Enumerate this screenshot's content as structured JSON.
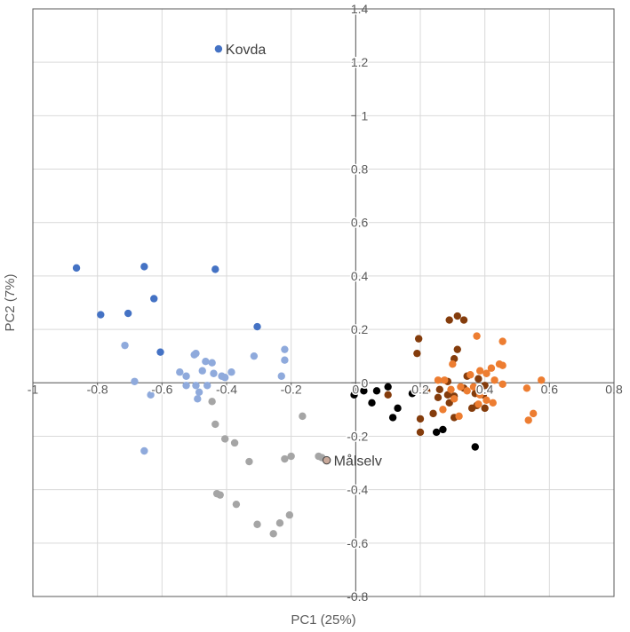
{
  "chart_data": {
    "type": "scatter",
    "title": "",
    "xlabel": "PC1 (25%)",
    "ylabel": "PC2 (7%)",
    "xlim": [
      -1,
      0.8
    ],
    "ylim": [
      -0.8,
      1.4
    ],
    "x_ticks": [
      -1,
      -0.8,
      -0.6,
      -0.4,
      -0.2,
      0,
      0.2,
      0.4,
      0.6,
      0.8
    ],
    "x_tick_labels": [
      "-1",
      "-0.8",
      "-0.6",
      "-0.4",
      "-0.2",
      "0",
      "0.2",
      "0.4",
      "0.6",
      "0.8"
    ],
    "y_ticks": [
      -0.8,
      -0.6,
      -0.4,
      -0.2,
      0,
      0.2,
      0.4,
      0.6,
      0.8,
      1,
      1.2,
      1.4
    ],
    "y_tick_labels": [
      "-0.8",
      "-0.6",
      "-0.4",
      "-0.2",
      "0",
      "0.2",
      "0.4",
      "0.6",
      "0.8",
      "1",
      "1.2",
      "1.4"
    ],
    "grid": true,
    "legend": "none",
    "annotations": [
      {
        "text": "Kovda",
        "x": -0.425,
        "y": 1.25
      },
      {
        "text": "Målselv",
        "x": -0.09,
        "y": -0.29
      }
    ],
    "series": [
      {
        "color": "#4472C4",
        "points": [
          [
            -0.425,
            1.25
          ],
          [
            -0.865,
            0.43
          ],
          [
            -0.655,
            0.435
          ],
          [
            -0.435,
            0.425
          ],
          [
            -0.625,
            0.315
          ],
          [
            -0.705,
            0.26
          ],
          [
            -0.79,
            0.255
          ],
          [
            -0.305,
            0.21
          ],
          [
            -0.605,
            0.115
          ]
        ]
      },
      {
        "color": "#8FAADC",
        "points": [
          [
            -0.715,
            0.14
          ],
          [
            -0.22,
            0.125
          ],
          [
            -0.5,
            0.105
          ],
          [
            -0.495,
            0.11
          ],
          [
            -0.315,
            0.1
          ],
          [
            -0.22,
            0.085
          ],
          [
            -0.445,
            0.075
          ],
          [
            -0.465,
            0.08
          ],
          [
            -0.385,
            0.04
          ],
          [
            -0.545,
            0.04
          ],
          [
            -0.525,
            0.025
          ],
          [
            -0.475,
            0.045
          ],
          [
            -0.44,
            0.035
          ],
          [
            -0.415,
            0.025
          ],
          [
            -0.405,
            0.02
          ],
          [
            -0.23,
            0.025
          ],
          [
            -0.685,
            0.005
          ],
          [
            -0.525,
            -0.01
          ],
          [
            -0.495,
            -0.01
          ],
          [
            -0.46,
            -0.01
          ],
          [
            -0.485,
            -0.035
          ],
          [
            -0.635,
            -0.045
          ],
          [
            -0.49,
            -0.06
          ],
          [
            -0.655,
            -0.255
          ]
        ]
      },
      {
        "color": "#A5A5A5",
        "points": [
          [
            -0.445,
            -0.07
          ],
          [
            -0.165,
            -0.125
          ],
          [
            -0.435,
            -0.155
          ],
          [
            -0.405,
            -0.21
          ],
          [
            -0.375,
            -0.225
          ],
          [
            -0.2,
            -0.275
          ],
          [
            -0.22,
            -0.285
          ],
          [
            -0.105,
            -0.28
          ],
          [
            -0.115,
            -0.275
          ],
          [
            -0.33,
            -0.295
          ],
          [
            -0.43,
            -0.415
          ],
          [
            -0.42,
            -0.42
          ],
          [
            -0.37,
            -0.455
          ],
          [
            -0.205,
            -0.495
          ],
          [
            -0.235,
            -0.525
          ],
          [
            -0.305,
            -0.53
          ],
          [
            -0.255,
            -0.565
          ]
        ]
      },
      {
        "color": "#000000",
        "points": [
          [
            0.1,
            -0.015
          ],
          [
            0.025,
            -0.03
          ],
          [
            0.065,
            -0.03
          ],
          [
            0.175,
            -0.04
          ],
          [
            -0.005,
            -0.045
          ],
          [
            0.05,
            -0.075
          ],
          [
            0.13,
            -0.095
          ],
          [
            0.115,
            -0.13
          ],
          [
            0.27,
            -0.175
          ],
          [
            0.25,
            -0.185
          ],
          [
            0.37,
            -0.24
          ]
        ]
      },
      {
        "color": "#843C0C",
        "points": [
          [
            0.315,
            0.25
          ],
          [
            0.29,
            0.235
          ],
          [
            0.335,
            0.235
          ],
          [
            0.195,
            0.165
          ],
          [
            0.315,
            0.125
          ],
          [
            0.19,
            0.11
          ],
          [
            0.305,
            0.09
          ],
          [
            0.345,
            0.025
          ],
          [
            0.38,
            0.015
          ],
          [
            0.285,
            0.005
          ],
          [
            0.4,
            -0.01
          ],
          [
            0.335,
            -0.02
          ],
          [
            0.26,
            -0.025
          ],
          [
            0.22,
            -0.03
          ],
          [
            0.285,
            -0.045
          ],
          [
            0.1,
            -0.045
          ],
          [
            0.305,
            -0.05
          ],
          [
            0.37,
            -0.04
          ],
          [
            0.395,
            -0.045
          ],
          [
            0.255,
            -0.055
          ],
          [
            0.29,
            -0.075
          ],
          [
            0.375,
            -0.085
          ],
          [
            0.36,
            -0.095
          ],
          [
            0.4,
            -0.095
          ],
          [
            0.24,
            -0.115
          ],
          [
            0.2,
            -0.135
          ],
          [
            0.305,
            -0.13
          ],
          [
            0.2,
            -0.185
          ]
        ]
      },
      {
        "color": "#ED7D31",
        "points": [
          [
            0.375,
            0.175
          ],
          [
            0.455,
            0.155
          ],
          [
            0.3,
            0.07
          ],
          [
            0.445,
            0.07
          ],
          [
            0.455,
            0.065
          ],
          [
            0.42,
            0.055
          ],
          [
            0.385,
            0.045
          ],
          [
            0.355,
            0.03
          ],
          [
            0.405,
            0.035
          ],
          [
            0.575,
            0.01
          ],
          [
            0.255,
            0.01
          ],
          [
            0.275,
            0.01
          ],
          [
            0.43,
            0.01
          ],
          [
            0.455,
            -0.005
          ],
          [
            0.325,
            -0.015
          ],
          [
            0.365,
            -0.015
          ],
          [
            0.53,
            -0.02
          ],
          [
            0.295,
            -0.025
          ],
          [
            0.345,
            -0.03
          ],
          [
            0.385,
            -0.045
          ],
          [
            0.305,
            -0.06
          ],
          [
            0.405,
            -0.065
          ],
          [
            0.425,
            -0.075
          ],
          [
            0.38,
            -0.08
          ],
          [
            0.27,
            -0.1
          ],
          [
            0.55,
            -0.115
          ],
          [
            0.32,
            -0.125
          ],
          [
            0.535,
            -0.14
          ]
        ]
      },
      {
        "color": "#C9A99A",
        "points": [
          [
            -0.09,
            -0.29
          ]
        ]
      }
    ]
  }
}
